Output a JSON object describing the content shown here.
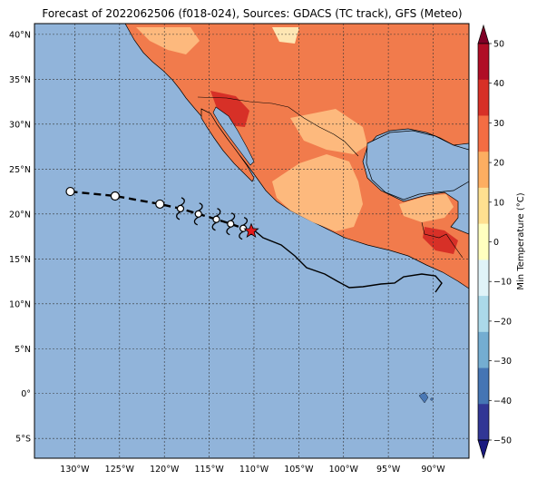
{
  "title": "Forecast of 2022062506 (f018-024), Sources: GDACS (TC track), GFS (Meteo)",
  "map": {
    "lon_ticks": [
      "130°W",
      "125°W",
      "120°W",
      "115°W",
      "110°W",
      "105°W",
      "100°W",
      "95°W",
      "90°W"
    ],
    "lat_ticks": [
      "40°N",
      "35°N",
      "30°N",
      "25°N",
      "20°N",
      "15°N",
      "10°N",
      "5°N",
      "0°",
      "5°S"
    ],
    "colors": {
      "ocean": "#91b4da",
      "land_base": "#f17b4c",
      "land_light": "#fdb97d",
      "land_pale": "#fee6b3",
      "land_dark": "#d73027"
    }
  },
  "track": {
    "past_positions": [
      {
        "lon": -130.5,
        "lat": 22.5
      },
      {
        "lon": -125.5,
        "lat": 22.0
      },
      {
        "lon": -120.5,
        "lat": 21.1
      }
    ],
    "forecast_positions": [
      {
        "lon": -118.2,
        "lat": 20.6
      },
      {
        "lon": -116.2,
        "lat": 20.0
      },
      {
        "lon": -114.2,
        "lat": 19.4
      },
      {
        "lon": -112.6,
        "lat": 18.9
      },
      {
        "lon": -111.2,
        "lat": 18.4
      }
    ],
    "current_position": {
      "lon": -110.3,
      "lat": 18.1
    }
  },
  "colorbar": {
    "label": "Min Temperature (°C)",
    "ticks": [
      "50",
      "40",
      "30",
      "20",
      "10",
      "0",
      "−10",
      "−20",
      "−30",
      "−40",
      "−50"
    ],
    "colors": [
      "#7f0026",
      "#b00d26",
      "#d73027",
      "#f46d43",
      "#fdae61",
      "#fee090",
      "#ffffbf",
      "#e0f3f8",
      "#abd9e9",
      "#74add1",
      "#4575b4",
      "#313695",
      "#1a1a80"
    ]
  }
}
